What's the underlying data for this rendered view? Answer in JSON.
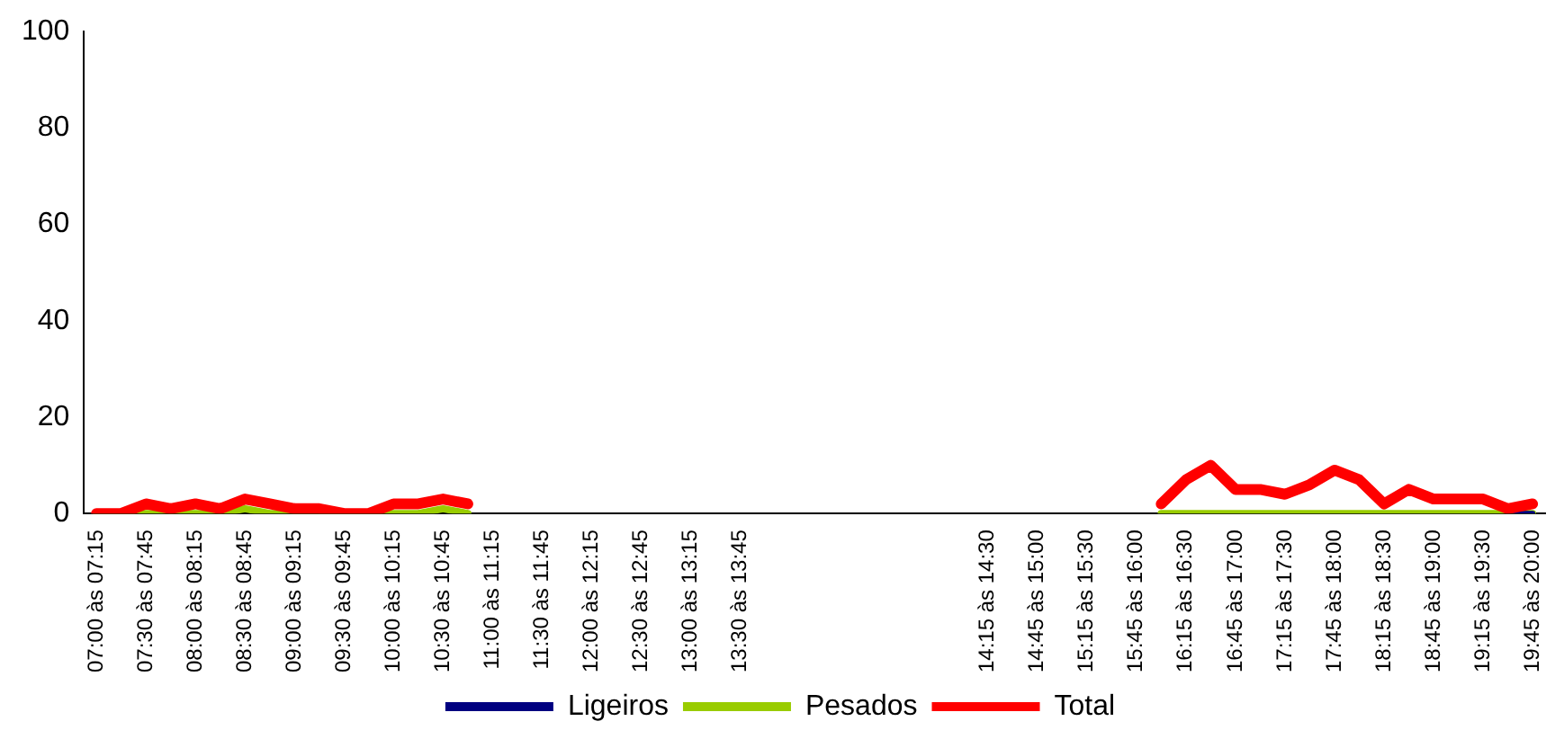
{
  "chart_data": {
    "type": "line",
    "categories": [
      "07:00 às 07:15",
      null,
      "07:30 às 07:45",
      null,
      "08:00 às 08:15",
      null,
      "08:30 às 08:45",
      null,
      "09:00 às 09:15",
      null,
      "09:30 às 09:45",
      null,
      "10:00 às 10:15",
      null,
      "10:30 às 10:45",
      null,
      "11:00 às 11:15",
      null,
      "11:30 às 11:45",
      null,
      "12:00 às 12:15",
      null,
      "12:30 às 12:45",
      null,
      "13:00 às 13:15",
      null,
      "13:30 às 13:45",
      null,
      null,
      null,
      null,
      null,
      null,
      null,
      null,
      null,
      "14:15 às 14:30",
      null,
      "14:45 às 15:00",
      null,
      "15:15 às 15:30",
      null,
      "15:45 às 16:00",
      null,
      "16:15 às 16:30",
      null,
      "16:45 às 17:00",
      null,
      "17:15 às 17:30",
      null,
      "17:45 às 18:00",
      null,
      "18:15 às 18:30",
      null,
      "18:45 às 19:00",
      null,
      "19:15 às 19:30",
      null,
      "19:45 às 20:00"
    ],
    "series": [
      {
        "name": "Ligeiros",
        "color": "#000080",
        "values": [
          null,
          null,
          null,
          null,
          null,
          null,
          null,
          null,
          null,
          null,
          null,
          null,
          null,
          null,
          null,
          null,
          null,
          null,
          null,
          null,
          null,
          null,
          null,
          null,
          null,
          null,
          null,
          null,
          null,
          null,
          null,
          null,
          null,
          null,
          null,
          null,
          null,
          null,
          null,
          null,
          null,
          null,
          null,
          null,
          null,
          null,
          null,
          null,
          null,
          null,
          null,
          null,
          null,
          null,
          null,
          null,
          null,
          0,
          0
        ]
      },
      {
        "name": "Pesados",
        "color": "#99cc00",
        "values": [
          0,
          0,
          0,
          0,
          0,
          0,
          1,
          0,
          0,
          0,
          0,
          0,
          0,
          0,
          1,
          0,
          null,
          null,
          null,
          null,
          null,
          null,
          null,
          null,
          null,
          null,
          null,
          null,
          null,
          null,
          null,
          null,
          null,
          null,
          null,
          null,
          null,
          null,
          null,
          null,
          null,
          null,
          null,
          0,
          0,
          0,
          0,
          0,
          0,
          0,
          0,
          0,
          0,
          0,
          0,
          0,
          0,
          0,
          0
        ]
      },
      {
        "name": "Total",
        "color": "#ff0000",
        "values": [
          0,
          0,
          2,
          1,
          2,
          1,
          3,
          2,
          1,
          1,
          0,
          0,
          2,
          2,
          3,
          2,
          null,
          null,
          null,
          null,
          null,
          null,
          null,
          null,
          null,
          null,
          null,
          null,
          null,
          null,
          null,
          null,
          null,
          null,
          null,
          null,
          null,
          null,
          null,
          null,
          null,
          null,
          null,
          2,
          7,
          10,
          5,
          5,
          4,
          6,
          9,
          7,
          2,
          5,
          3,
          3,
          3,
          1,
          2
        ]
      }
    ],
    "ylim": [
      0,
      100
    ],
    "yticks": [
      0,
      20,
      40,
      60,
      80,
      100
    ],
    "grid": false,
    "legend": "bottom",
    "marker": "none",
    "line_style": "solid"
  }
}
